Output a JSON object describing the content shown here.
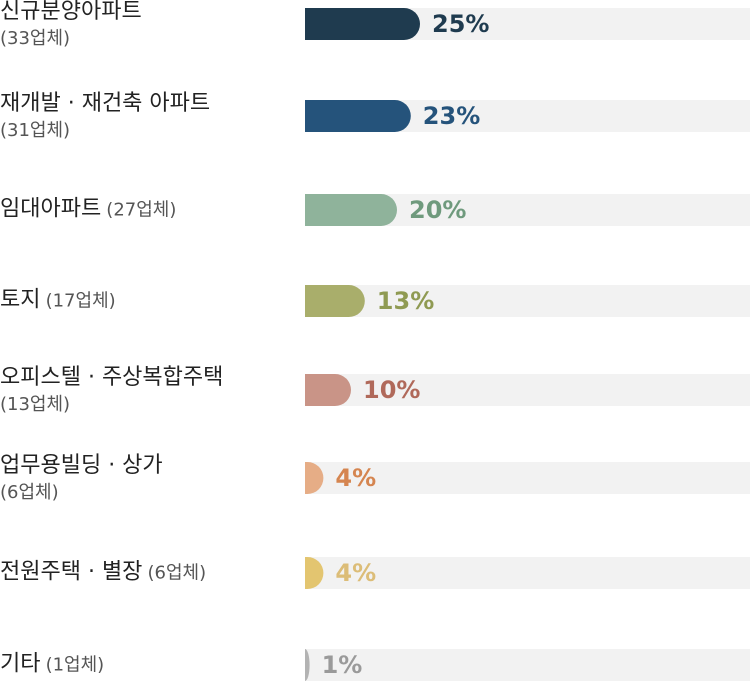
{
  "chart_data": {
    "type": "bar",
    "categories": [
      "신규분양아파트",
      "재개발 · 재건축 아파트",
      "임대아파트",
      "토지",
      "오피스텔 · 주상복합주택",
      "업무용빌딩 · 상가",
      "전원주택 · 별장",
      "기타"
    ],
    "category_notes": [
      "(33업체)",
      "(31업체)",
      "(27업체)",
      "(17업체)",
      "(13업체)",
      "(6업체)",
      "(6업체)",
      "(1업체)"
    ],
    "values": [
      25,
      23,
      20,
      13,
      10,
      4,
      4,
      1
    ],
    "value_labels": [
      "25%",
      "23%",
      "20%",
      "13%",
      "10%",
      "4%",
      "4%",
      "1%"
    ],
    "colors": [
      "#1f3b4f",
      "#25537b",
      "#8fb39b",
      "#a9ae6b",
      "#c99487",
      "#e6ad86",
      "#e3c570",
      "#b3b3b3"
    ],
    "label_colors": [
      "#1f3b4f",
      "#25537b",
      "#6f9a7d",
      "#8f9a52",
      "#b0695a",
      "#d58550",
      "#dcbd78",
      "#9a9a9a"
    ]
  }
}
